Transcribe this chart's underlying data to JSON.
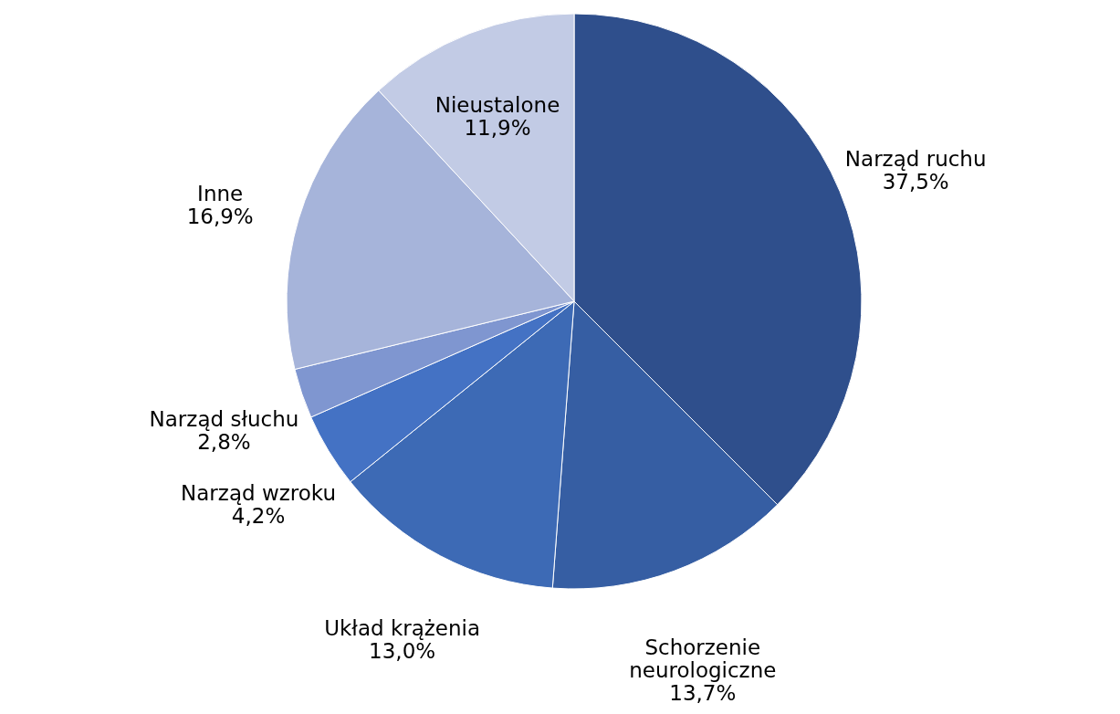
{
  "chart_data": {
    "type": "pie",
    "categories": [
      "Narząd ruchu",
      "Schorzenie neurologiczne",
      "Układ krążenia",
      "Narząd wzroku",
      "Narząd słuchu",
      "Inne",
      "Nieustalone"
    ],
    "values": [
      37.5,
      13.7,
      13.0,
      4.2,
      2.8,
      16.9,
      11.9
    ],
    "colors": [
      "#2f4f8c",
      "#365ea3",
      "#3d6ab5",
      "#4472c4",
      "#7f96d0",
      "#a6b4da",
      "#c2cbe5"
    ],
    "value_labels": [
      "37,5%",
      "13,7%",
      "13,0%",
      "4,2%",
      "2,8%",
      "16,9%",
      "11,9%"
    ]
  }
}
